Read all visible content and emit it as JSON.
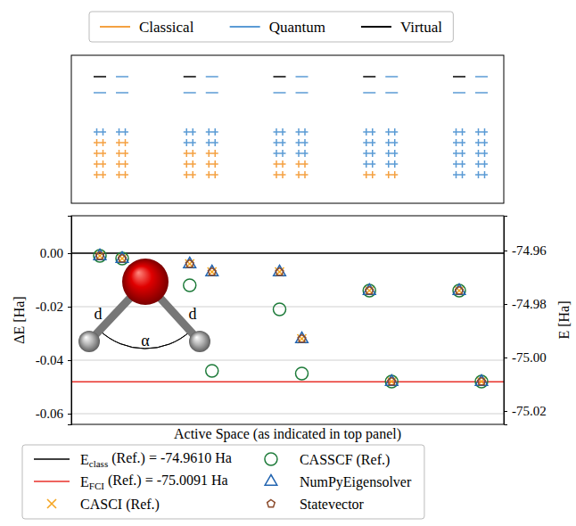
{
  "chart_data": {
    "type": "scatter",
    "x_label": "Active Space (as indicated in top panel)",
    "y_label": "ΔE [Ha]",
    "y2_label": "E [Ha]",
    "categories": [
      null,
      null,
      null,
      null,
      null,
      null,
      null,
      null,
      null,
      null
    ],
    "tick_labels": "y",
    "ylim": [
      -0.064,
      0.014
    ],
    "yticks": [
      {
        "value": 0,
        "label": "0.00"
      },
      -0.02,
      -0.04,
      -0.06
    ],
    "y2lim": [
      -75.025,
      -74.947
    ],
    "y2ticks": [
      -74.96,
      -74.98,
      {
        "value": -75,
        "label": "-75.00"
      },
      -75.02
    ],
    "grid": true,
    "legend": "bottom",
    "reference_lines": [
      {
        "name": "E",
        "subscript": "class",
        "label": "(Ref.) = -74.9610 Ha",
        "energy": -74.961,
        "value": 0,
        "color": "#000000"
      },
      {
        "name": "E",
        "subscript": "FCI",
        "label": "(Ref.) = -75.0091 Ha",
        "energy": -75.0091,
        "value": -0.0481,
        "color": "#e8302a"
      }
    ],
    "series": [
      {
        "name": "CASCI (Ref.)",
        "color": "#f5a623",
        "marker": "x",
        "values": [
          -0.001,
          -0.002,
          -0.004,
          -0.007,
          -0.007,
          -0.032,
          -0.014,
          -0.048,
          -0.014,
          -0.048
        ]
      },
      {
        "name": "CASSCF (Ref.)",
        "color": "#1e7b3a",
        "marker": "circle",
        "values": [
          -0.001,
          -0.002,
          -0.012,
          -0.044,
          -0.021,
          -0.045,
          -0.014,
          -0.048,
          -0.014,
          -0.048
        ]
      },
      {
        "name": "NumPyEigensolver",
        "color": "#2264b0",
        "marker": "triangle",
        "values": [
          -0.001,
          -0.002,
          -0.004,
          -0.007,
          -0.007,
          -0.032,
          -0.014,
          -0.048,
          -0.014,
          -0.048
        ]
      },
      {
        "name": "Statevector",
        "color": "#8b4a2b",
        "marker": "pentagon",
        "values": [
          -0.001,
          -0.002,
          -0.004,
          -0.007,
          -0.007,
          -0.032,
          -0.014,
          -0.048,
          -0.014,
          -0.048
        ]
      }
    ],
    "orbital_panel": {
      "orbital_types": [
        {
          "name": "Classical",
          "color": "#f4a142"
        },
        {
          "name": "Quantum",
          "color": "#5b9bd5"
        },
        {
          "name": "Virtual",
          "color": "#000000"
        }
      ],
      "n_orbitals": 7,
      "n_electrons": 10,
      "active_spaces": [
        {
          "electrons": 2,
          "orbitals": 2
        },
        {
          "electrons": 2,
          "orbitals": 3
        },
        {
          "electrons": 4,
          "orbitals": 3
        },
        {
          "electrons": 4,
          "orbitals": 4
        },
        {
          "electrons": 6,
          "orbitals": 4
        },
        {
          "electrons": 6,
          "orbitals": 5
        },
        {
          "electrons": 8,
          "orbitals": 5
        },
        {
          "electrons": 8,
          "orbitals": 6
        },
        {
          "electrons": 10,
          "orbitals": 6
        },
        {
          "electrons": 10,
          "orbitals": 7
        }
      ]
    },
    "annotations": [
      {
        "text": "d"
      },
      {
        "text": "d"
      },
      {
        "text": "α"
      }
    ]
  }
}
